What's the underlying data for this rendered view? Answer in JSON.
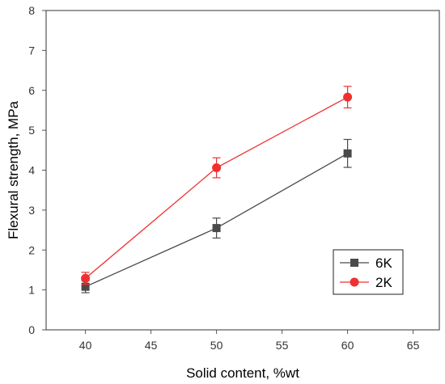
{
  "chart_data": {
    "type": "line",
    "xlabel": "Solid content, %wt",
    "ylabel": "Flexural strength, MPa",
    "xlim": [
      37,
      67
    ],
    "ylim": [
      0,
      8
    ],
    "x_ticks": [
      40,
      45,
      50,
      55,
      60,
      65
    ],
    "y_ticks": [
      0,
      1,
      2,
      3,
      4,
      5,
      6,
      7,
      8
    ],
    "grid": false,
    "legend_position": "bottom-right",
    "series": [
      {
        "name": "6K",
        "marker": "square",
        "color": "#4a4a4a",
        "x": [
          40,
          50,
          60
        ],
        "y": [
          1.08,
          2.55,
          4.42
        ],
        "error": [
          0.15,
          0.25,
          0.35
        ]
      },
      {
        "name": "2K",
        "marker": "circle",
        "color": "#f03030",
        "x": [
          40,
          50,
          60
        ],
        "y": [
          1.29,
          4.06,
          5.83
        ],
        "error": [
          0.15,
          0.25,
          0.27
        ]
      }
    ]
  }
}
